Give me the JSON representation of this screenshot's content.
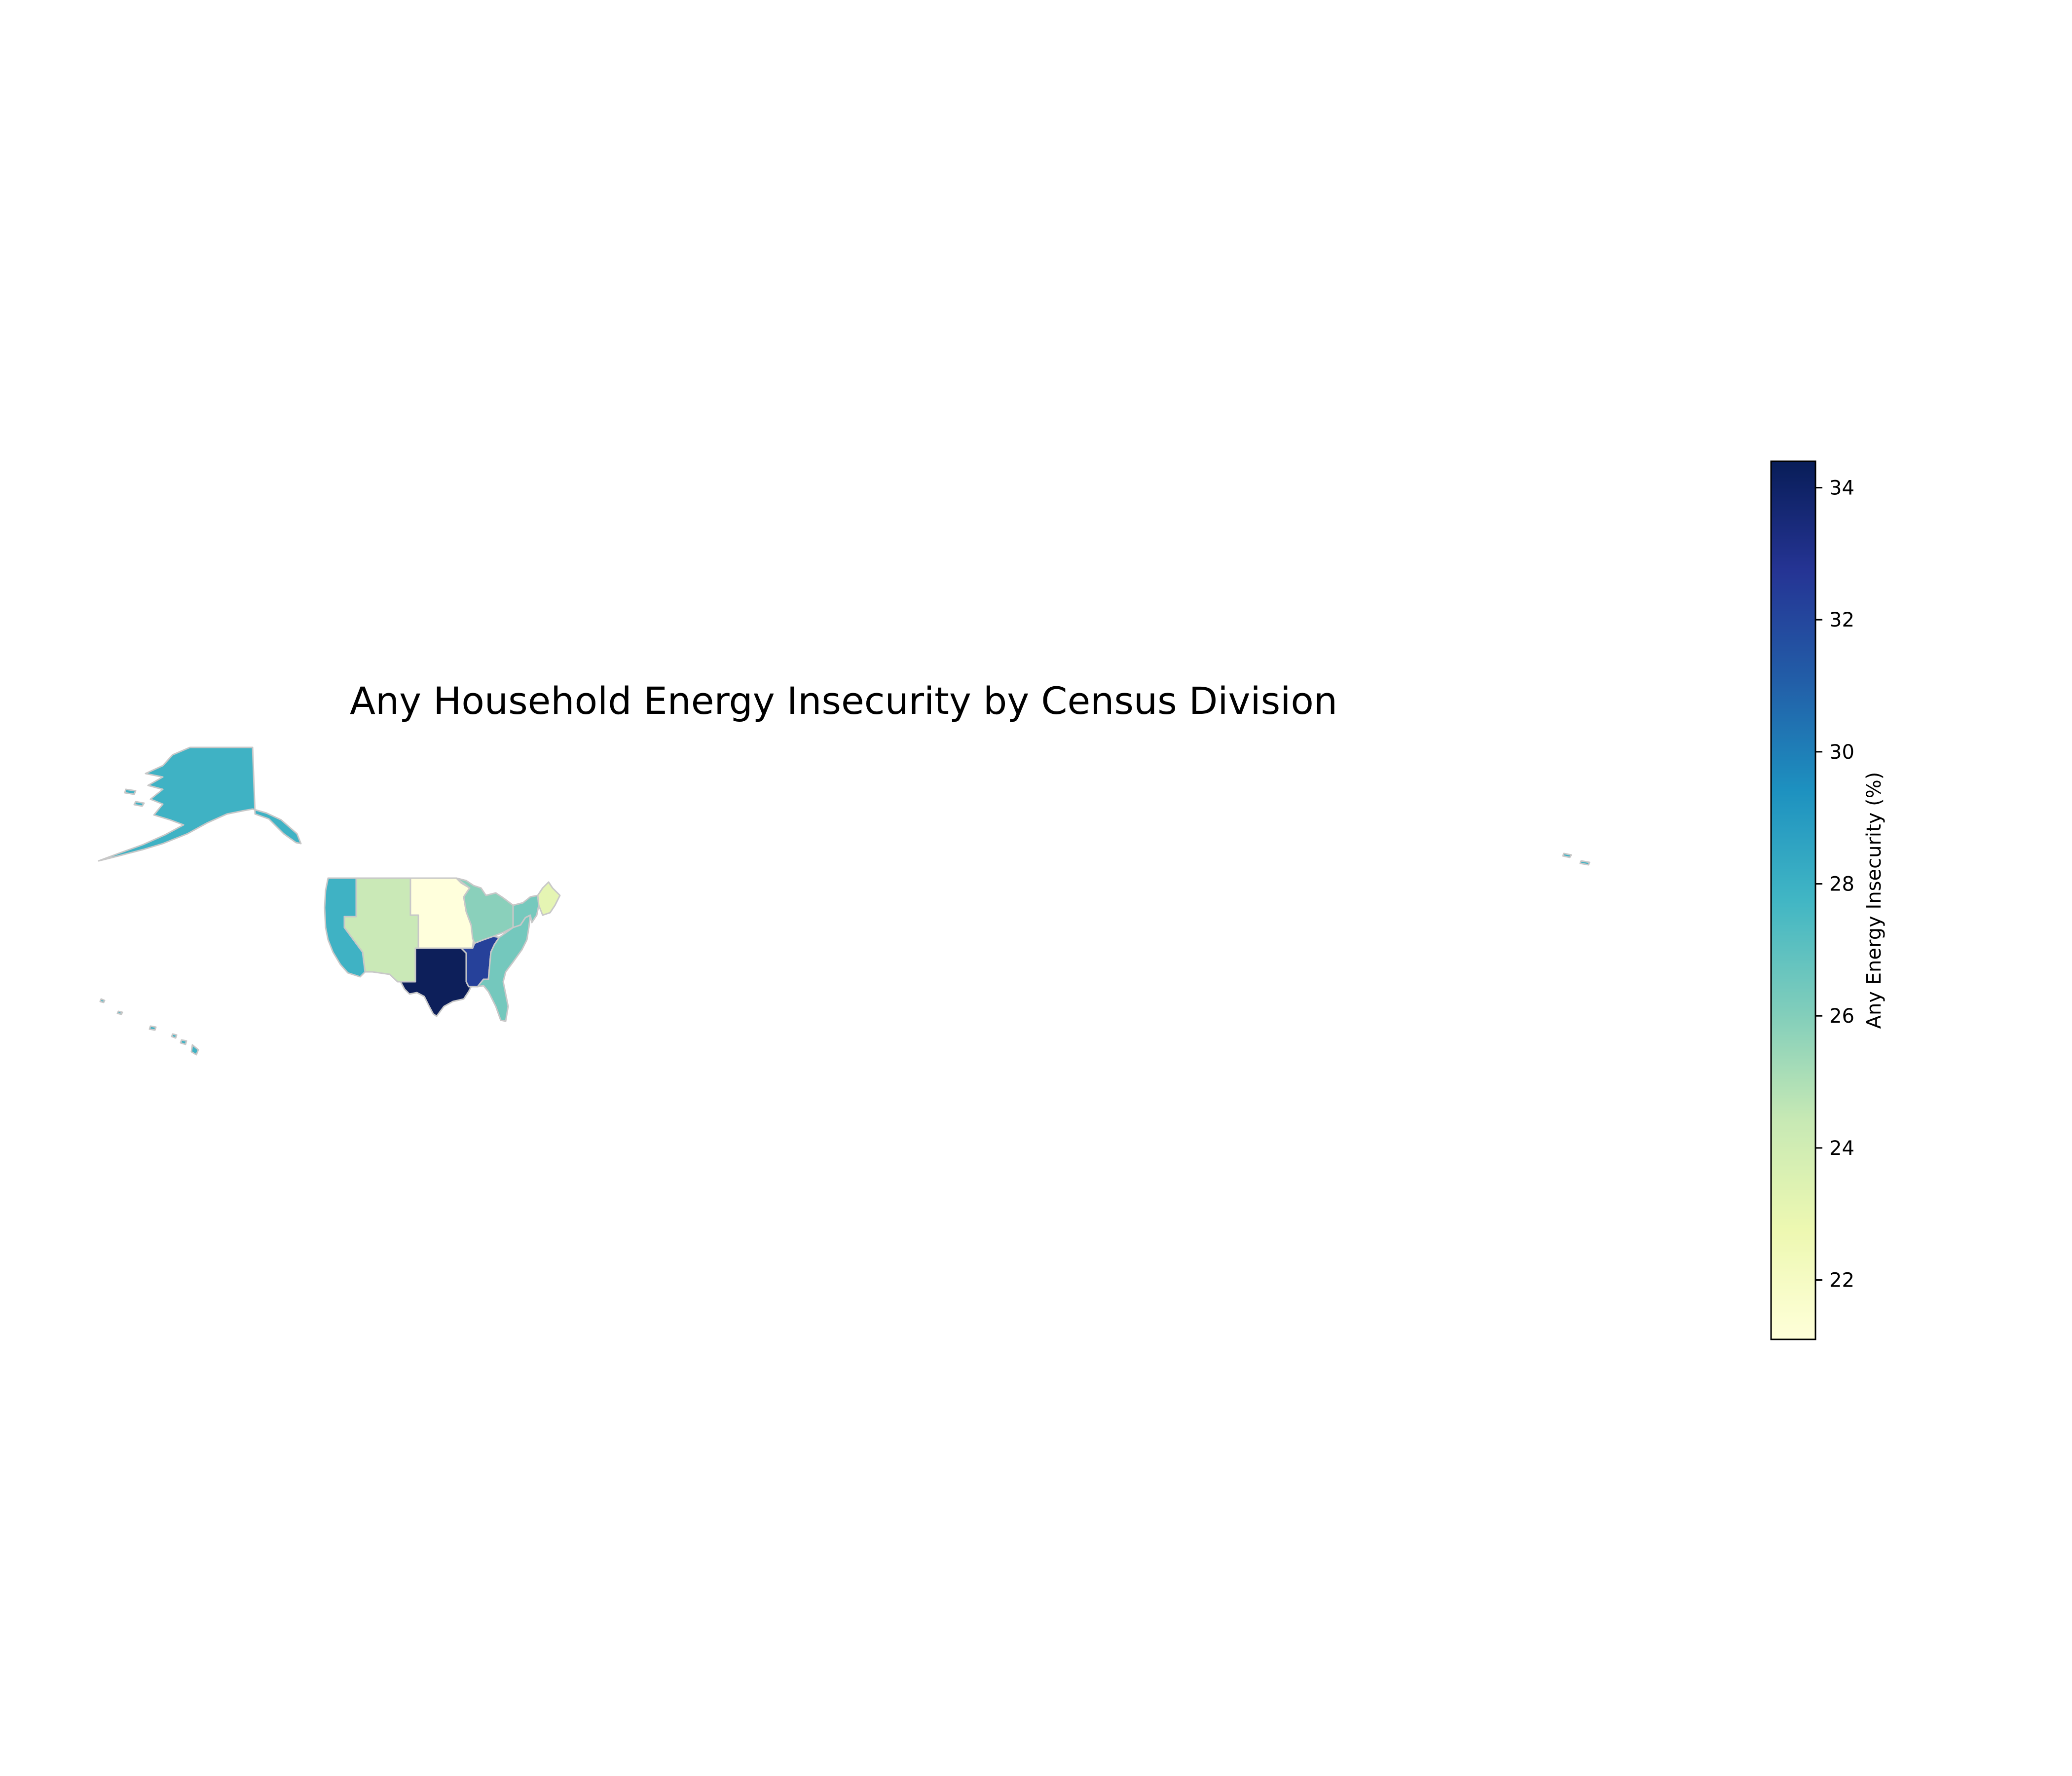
{
  "title": "Any Household Energy Insecurity by Census Division",
  "colorbar": {
    "label": "Any Energy Insecurity (%)",
    "min": 21.1,
    "max": 34.4,
    "ticks": [
      22,
      24,
      26,
      28,
      30,
      32,
      34
    ],
    "tick_labels": [
      "22",
      "24",
      "26",
      "28",
      "30",
      "32",
      "34"
    ],
    "colormap": "YlGnBu",
    "stops": [
      "#ffffd9",
      "#edf8b1",
      "#c7e9b4",
      "#7fcdbb",
      "#41b6c4",
      "#1d91c0",
      "#225ea8",
      "#253494",
      "#081d58"
    ]
  },
  "region_colors": {
    "Pacific": "#3fb2c4",
    "Mountain": "#cae9b7",
    "West North Central": "#ffffdc",
    "West South Central": "#0d1f5a",
    "East North Central": "#8ad0bb",
    "East South Central": "#26419a",
    "South Atlantic": "#74c8bd",
    "Middle Atlantic": "#76c9bd",
    "New England": "#e5f5b3"
  },
  "border_color": "#c8c8c8"
}
